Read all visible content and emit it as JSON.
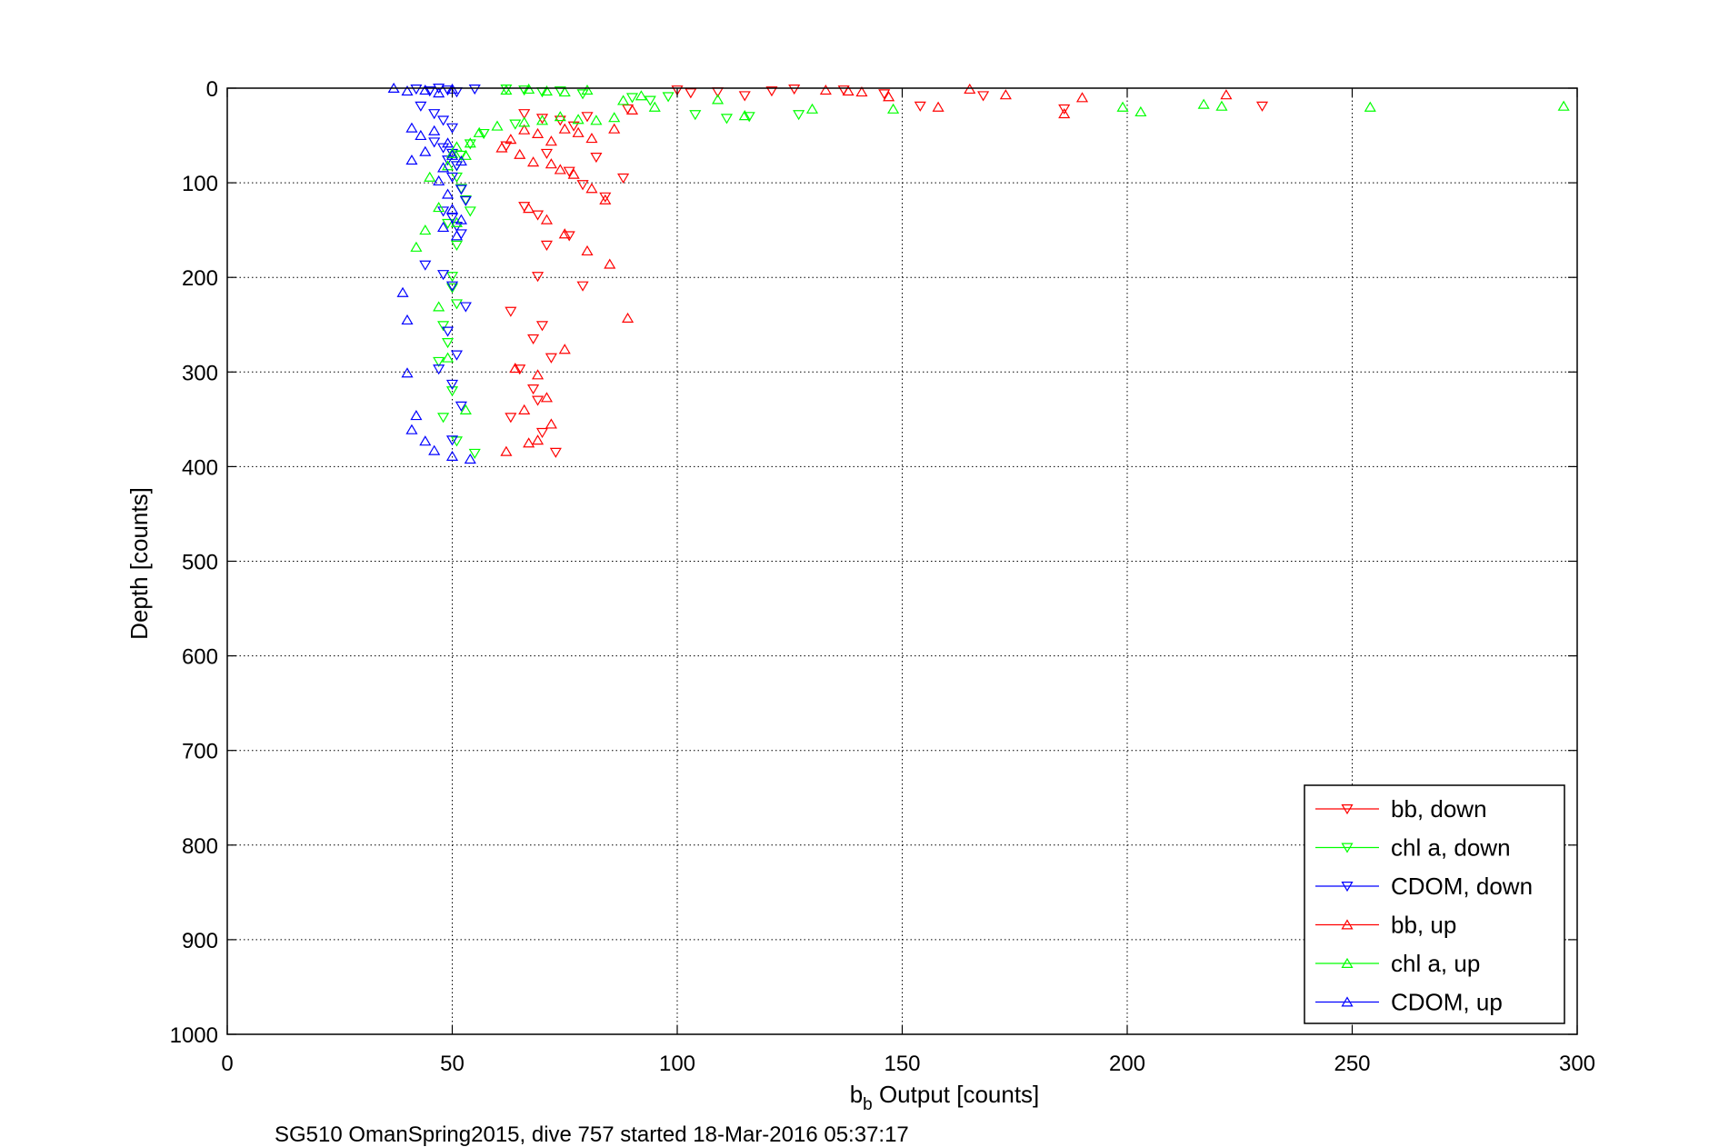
{
  "chart_data": {
    "type": "scatter",
    "xlabel_main": "b",
    "xlabel_sub": "b",
    "xlabel_rest": " Output [counts]",
    "ylabel": "Depth [counts]",
    "caption": "SG510 OmanSpring2015, dive 757 started 18-Mar-2016 05:37:17",
    "xlim": [
      0,
      300
    ],
    "ylim": [
      0,
      1000
    ],
    "y_reversed": true,
    "grid": true,
    "legend_position": "bottom-right",
    "x_ticks": [
      "0",
      "50",
      "100",
      "150",
      "200",
      "250",
      "300"
    ],
    "y_ticks": [
      "0",
      "100",
      "200",
      "300",
      "400",
      "500",
      "600",
      "700",
      "800",
      "900",
      "1000"
    ],
    "series": [
      {
        "name": "bb, down",
        "color": "#ff0000",
        "marker": "triangle-down",
        "x": [
          100,
          103,
          109,
          115,
          121,
          126,
          137,
          146,
          154,
          168,
          186,
          230,
          66,
          70,
          74,
          77,
          80,
          89,
          62,
          71,
          82,
          88,
          66,
          69,
          76,
          79,
          84,
          71,
          76,
          69,
          79,
          63,
          70,
          68,
          72,
          65,
          68,
          69,
          63,
          70,
          73
        ],
        "y": [
          2,
          5,
          4,
          8,
          3,
          1,
          2,
          6,
          19,
          8,
          22,
          19,
          27,
          32,
          34,
          40,
          30,
          22,
          61,
          69,
          73,
          95,
          125,
          134,
          88,
          102,
          115,
          166,
          156,
          199,
          209,
          236,
          251,
          265,
          285,
          297,
          318,
          330,
          348,
          364,
          385
        ]
      },
      {
        "name": "chl a, down",
        "color": "#00ff00",
        "marker": "triangle-down",
        "x": [
          62,
          66,
          70,
          74,
          79,
          90,
          94,
          98,
          104,
          111,
          116,
          127,
          64,
          57,
          54,
          52,
          51,
          51,
          52,
          53,
          54,
          49,
          51,
          50,
          50,
          51,
          48,
          49,
          47,
          50,
          48,
          51,
          55
        ],
        "y": [
          1,
          2,
          4,
          3,
          6,
          10,
          13,
          9,
          28,
          32,
          30,
          28,
          38,
          48,
          59,
          71,
          82,
          94,
          106,
          118,
          130,
          143,
          166,
          199,
          211,
          228,
          251,
          269,
          289,
          320,
          348,
          373,
          386
        ]
      },
      {
        "name": "CDOM, down",
        "color": "#0000ff",
        "marker": "triangle-down",
        "x": [
          42,
          45,
          47,
          49,
          51,
          55,
          43,
          46,
          48,
          50,
          46,
          48,
          50,
          49,
          51,
          50,
          52,
          53,
          48,
          50,
          51,
          52,
          44,
          48,
          50,
          53,
          49,
          51,
          47,
          50,
          52,
          50
        ],
        "y": [
          1,
          3,
          0,
          2,
          4,
          1,
          19,
          27,
          34,
          42,
          57,
          63,
          69,
          76,
          82,
          94,
          107,
          119,
          130,
          137,
          146,
          154,
          187,
          197,
          209,
          231,
          257,
          282,
          297,
          313,
          336,
          372
        ]
      },
      {
        "name": "bb, up",
        "color": "#ff0000",
        "marker": "triangle-up",
        "x": [
          133,
          138,
          141,
          147,
          158,
          165,
          173,
          186,
          190,
          222,
          63,
          66,
          69,
          72,
          75,
          78,
          81,
          86,
          90,
          61,
          65,
          68,
          72,
          74,
          77,
          81,
          84,
          67,
          71,
          75,
          80,
          85,
          89,
          64,
          69,
          75,
          71,
          66,
          72,
          69,
          67,
          62
        ],
        "y": [
          2,
          3,
          4,
          9,
          20,
          1,
          7,
          27,
          10,
          7,
          54,
          44,
          48,
          56,
          43,
          47,
          53,
          43,
          23,
          63,
          70,
          78,
          80,
          86,
          91,
          106,
          118,
          127,
          139,
          154,
          172,
          186,
          243,
          296,
          303,
          276,
          327,
          340,
          355,
          372,
          375,
          384
        ]
      },
      {
        "name": "chl a, up",
        "color": "#00ff00",
        "marker": "triangle-up",
        "x": [
          62,
          67,
          71,
          75,
          80,
          88,
          92,
          95,
          109,
          115,
          130,
          148,
          199,
          203,
          217,
          221,
          254,
          297,
          66,
          70,
          74,
          78,
          82,
          86,
          60,
          56,
          54,
          51,
          50,
          53,
          49,
          45,
          47,
          51,
          44,
          42,
          47,
          49,
          53
        ],
        "y": [
          2,
          1,
          3,
          4,
          2,
          13,
          8,
          20,
          12,
          29,
          22,
          22,
          20,
          25,
          17,
          19,
          20,
          19,
          36,
          34,
          30,
          33,
          34,
          31,
          40,
          47,
          58,
          62,
          69,
          71,
          82,
          94,
          126,
          142,
          150,
          168,
          231,
          285,
          340
        ]
      },
      {
        "name": "CDOM, up",
        "color": "#0000ff",
        "marker": "triangle-up",
        "x": [
          37,
          40,
          44,
          47,
          50,
          41,
          43,
          46,
          49,
          50,
          52,
          41,
          44,
          48,
          47,
          49,
          50,
          52,
          48,
          51,
          39,
          40,
          40,
          42,
          41,
          44,
          46,
          50,
          54
        ],
        "y": [
          0,
          3,
          2,
          5,
          1,
          42,
          50,
          45,
          58,
          71,
          77,
          76,
          67,
          84,
          98,
          112,
          128,
          139,
          147,
          156,
          216,
          245,
          301,
          346,
          361,
          373,
          383,
          389,
          392
        ]
      }
    ]
  }
}
